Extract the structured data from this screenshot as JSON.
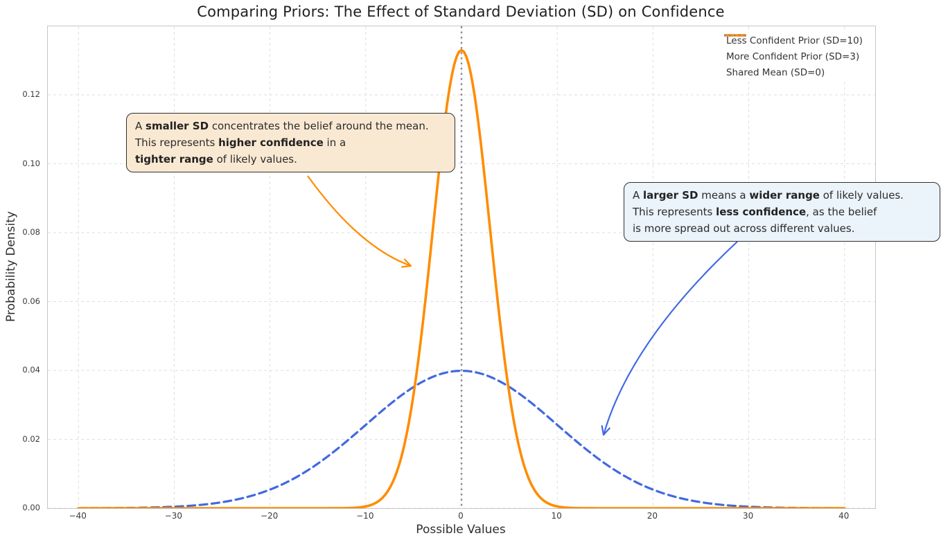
{
  "chart_data": {
    "type": "line",
    "title": "Comparing Priors: The Effect of Standard Deviation (SD) on Confidence",
    "xlabel": "Possible Values",
    "ylabel": "Probability Density",
    "xlim": [
      -43.2,
      43.2
    ],
    "ylim": [
      0,
      0.1399
    ],
    "xticks": [
      -40,
      -30,
      -20,
      -10,
      0,
      10,
      20,
      30,
      40
    ],
    "yticks": [
      "0.00",
      "0.02",
      "0.04",
      "0.06",
      "0.08",
      "0.10",
      "0.12"
    ],
    "grid": true,
    "grid_style": "dashed",
    "legend_position": "upper right",
    "series": [
      {
        "name": "Less Confident Prior (SD=10)",
        "curve": "gaussian",
        "mean": 0,
        "sd": 10,
        "peak_density": 0.0399,
        "x_range": [
          -40,
          40
        ],
        "color": "#4169E1",
        "style": "dashed",
        "linewidth": 3.2
      },
      {
        "name": "More Confident Prior (SD=3)",
        "curve": "gaussian",
        "mean": 0,
        "sd": 3,
        "peak_density": 0.133,
        "x_range": [
          -40,
          40
        ],
        "color": "#FF8C00",
        "style": "solid",
        "linewidth": 3.6
      }
    ],
    "vline": {
      "label": "Shared Mean (SD=0)",
      "x": 0,
      "color": "#8a8a8a",
      "style": "dotted",
      "linewidth": 2.4
    }
  },
  "annotations": [
    {
      "id": "smaller-sd",
      "bg": "#fae9d2",
      "border": "#2f2f2f",
      "arrow_color": "#FF8C00",
      "lines": [
        [
          {
            "t": "A "
          },
          {
            "t": "smaller SD",
            "b": true
          },
          {
            "t": " concentrates the belief around the mean."
          }
        ],
        [
          {
            "t": "This represents "
          },
          {
            "t": "higher confidence",
            "b": true
          },
          {
            "t": " in a"
          }
        ],
        [
          {
            "t": "tighter range",
            "b": true
          },
          {
            "t": " of likely values."
          }
        ]
      ]
    },
    {
      "id": "larger-sd",
      "bg": "#ebf3fb",
      "border": "#2f2f2f",
      "arrow_color": "#4169E1",
      "lines": [
        [
          {
            "t": "A "
          },
          {
            "t": "larger SD",
            "b": true
          },
          {
            "t": " means a "
          },
          {
            "t": "wider range",
            "b": true
          },
          {
            "t": " of likely values."
          }
        ],
        [
          {
            "t": "This represents "
          },
          {
            "t": "less confidence",
            "b": true
          },
          {
            "t": ", as the belief"
          }
        ],
        [
          {
            "t": "is more spread out across different values."
          }
        ]
      ]
    }
  ]
}
